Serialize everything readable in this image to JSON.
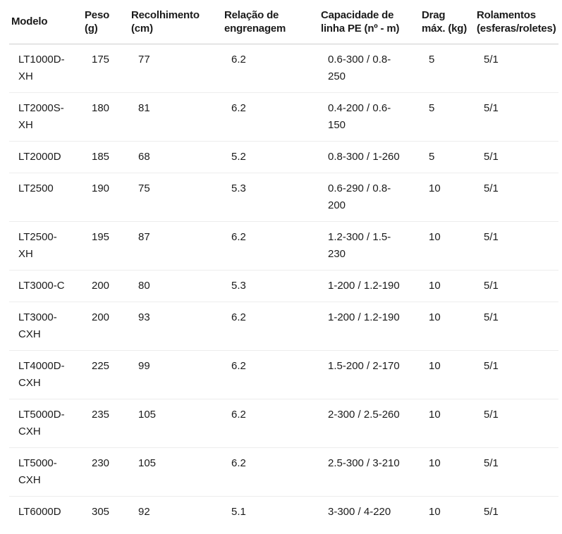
{
  "colors": {
    "background": "#ffffff",
    "text": "#1b1b1b",
    "header_border": "#cdcdcd",
    "row_border": "#ededed"
  },
  "table": {
    "columns": [
      {
        "label": "Modelo"
      },
      {
        "label": "Peso (g)"
      },
      {
        "label": "Recolhimento (cm)"
      },
      {
        "label": "Relação de engrenagem"
      },
      {
        "label": "Capacidade de linha PE (nº - m)"
      },
      {
        "label": "Drag máx. (kg)"
      },
      {
        "label": "Rolamentos (esferas/roletes)"
      }
    ],
    "rows": [
      {
        "modelo": "LT1000D-XH",
        "peso": "175",
        "recolhimento": "77",
        "relacao": "6.2",
        "capacidade": "0.6-300 / 0.8-250",
        "drag": "5",
        "rolamentos": "5/1"
      },
      {
        "modelo": "LT2000S-XH",
        "peso": "180",
        "recolhimento": "81",
        "relacao": "6.2",
        "capacidade": "0.4-200 / 0.6-150",
        "drag": "5",
        "rolamentos": "5/1"
      },
      {
        "modelo": "LT2000D",
        "peso": "185",
        "recolhimento": "68",
        "relacao": "5.2",
        "capacidade": "0.8-300 / 1-260",
        "drag": "5",
        "rolamentos": "5/1"
      },
      {
        "modelo": "LT2500",
        "peso": "190",
        "recolhimento": "75",
        "relacao": "5.3",
        "capacidade": "0.6-290 / 0.8-200",
        "drag": "10",
        "rolamentos": "5/1"
      },
      {
        "modelo": "LT2500-XH",
        "peso": "195",
        "recolhimento": "87",
        "relacao": "6.2",
        "capacidade": "1.2-300 / 1.5-230",
        "drag": "10",
        "rolamentos": "5/1"
      },
      {
        "modelo": "LT3000-C",
        "peso": "200",
        "recolhimento": "80",
        "relacao": "5.3",
        "capacidade": "1-200 / 1.2-190",
        "drag": "10",
        "rolamentos": "5/1"
      },
      {
        "modelo": "LT3000-CXH",
        "peso": "200",
        "recolhimento": "93",
        "relacao": "6.2",
        "capacidade": "1-200 / 1.2-190",
        "drag": "10",
        "rolamentos": "5/1"
      },
      {
        "modelo": "LT4000D-CXH",
        "peso": "225",
        "recolhimento": "99",
        "relacao": "6.2",
        "capacidade": "1.5-200 / 2-170",
        "drag": "10",
        "rolamentos": "5/1"
      },
      {
        "modelo": "LT5000D-CXH",
        "peso": "235",
        "recolhimento": "105",
        "relacao": "6.2",
        "capacidade": "2-300 / 2.5-260",
        "drag": "10",
        "rolamentos": "5/1"
      },
      {
        "modelo": "LT5000-CXH",
        "peso": "230",
        "recolhimento": "105",
        "relacao": "6.2",
        "capacidade": "2.5-300 / 3-210",
        "drag": "10",
        "rolamentos": "5/1"
      },
      {
        "modelo": "LT6000D",
        "peso": "305",
        "recolhimento": "92",
        "relacao": "5.1",
        "capacidade": "3-300 / 4-220",
        "drag": "10",
        "rolamentos": "5/1"
      }
    ]
  }
}
